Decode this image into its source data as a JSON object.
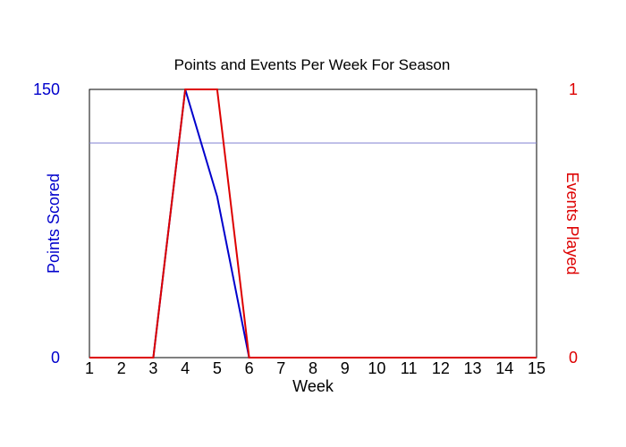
{
  "chart_data": {
    "type": "line",
    "title": "Points and Events Per Week For Season",
    "xlabel": "Week",
    "ylabel_left": "Points Scored",
    "ylabel_right": "Events Played",
    "x": [
      1,
      2,
      3,
      4,
      5,
      6,
      7,
      8,
      9,
      10,
      11,
      12,
      13,
      14,
      15
    ],
    "xlim": [
      1,
      15
    ],
    "ylim_left": [
      0,
      150
    ],
    "ylim_right": [
      0,
      1
    ],
    "yticks_left": [
      "0",
      "150"
    ],
    "yticks_right": [
      "0",
      "1"
    ],
    "reference_line_left": 120,
    "series": [
      {
        "axis": "left",
        "color": "#0000cc",
        "values": [
          0,
          0,
          0,
          150,
          90,
          0,
          0,
          0,
          0,
          0,
          0,
          0,
          0,
          0,
          0
        ]
      },
      {
        "axis": "right",
        "color": "#dd0000",
        "values": [
          0,
          0,
          0,
          1,
          1,
          0,
          0,
          0,
          0,
          0,
          0,
          0,
          0,
          0,
          0
        ]
      }
    ],
    "colors": {
      "left_axis": "#0000cc",
      "right_axis": "#dd0000",
      "reference_line": "#8080d0",
      "frame": "#000000"
    }
  }
}
